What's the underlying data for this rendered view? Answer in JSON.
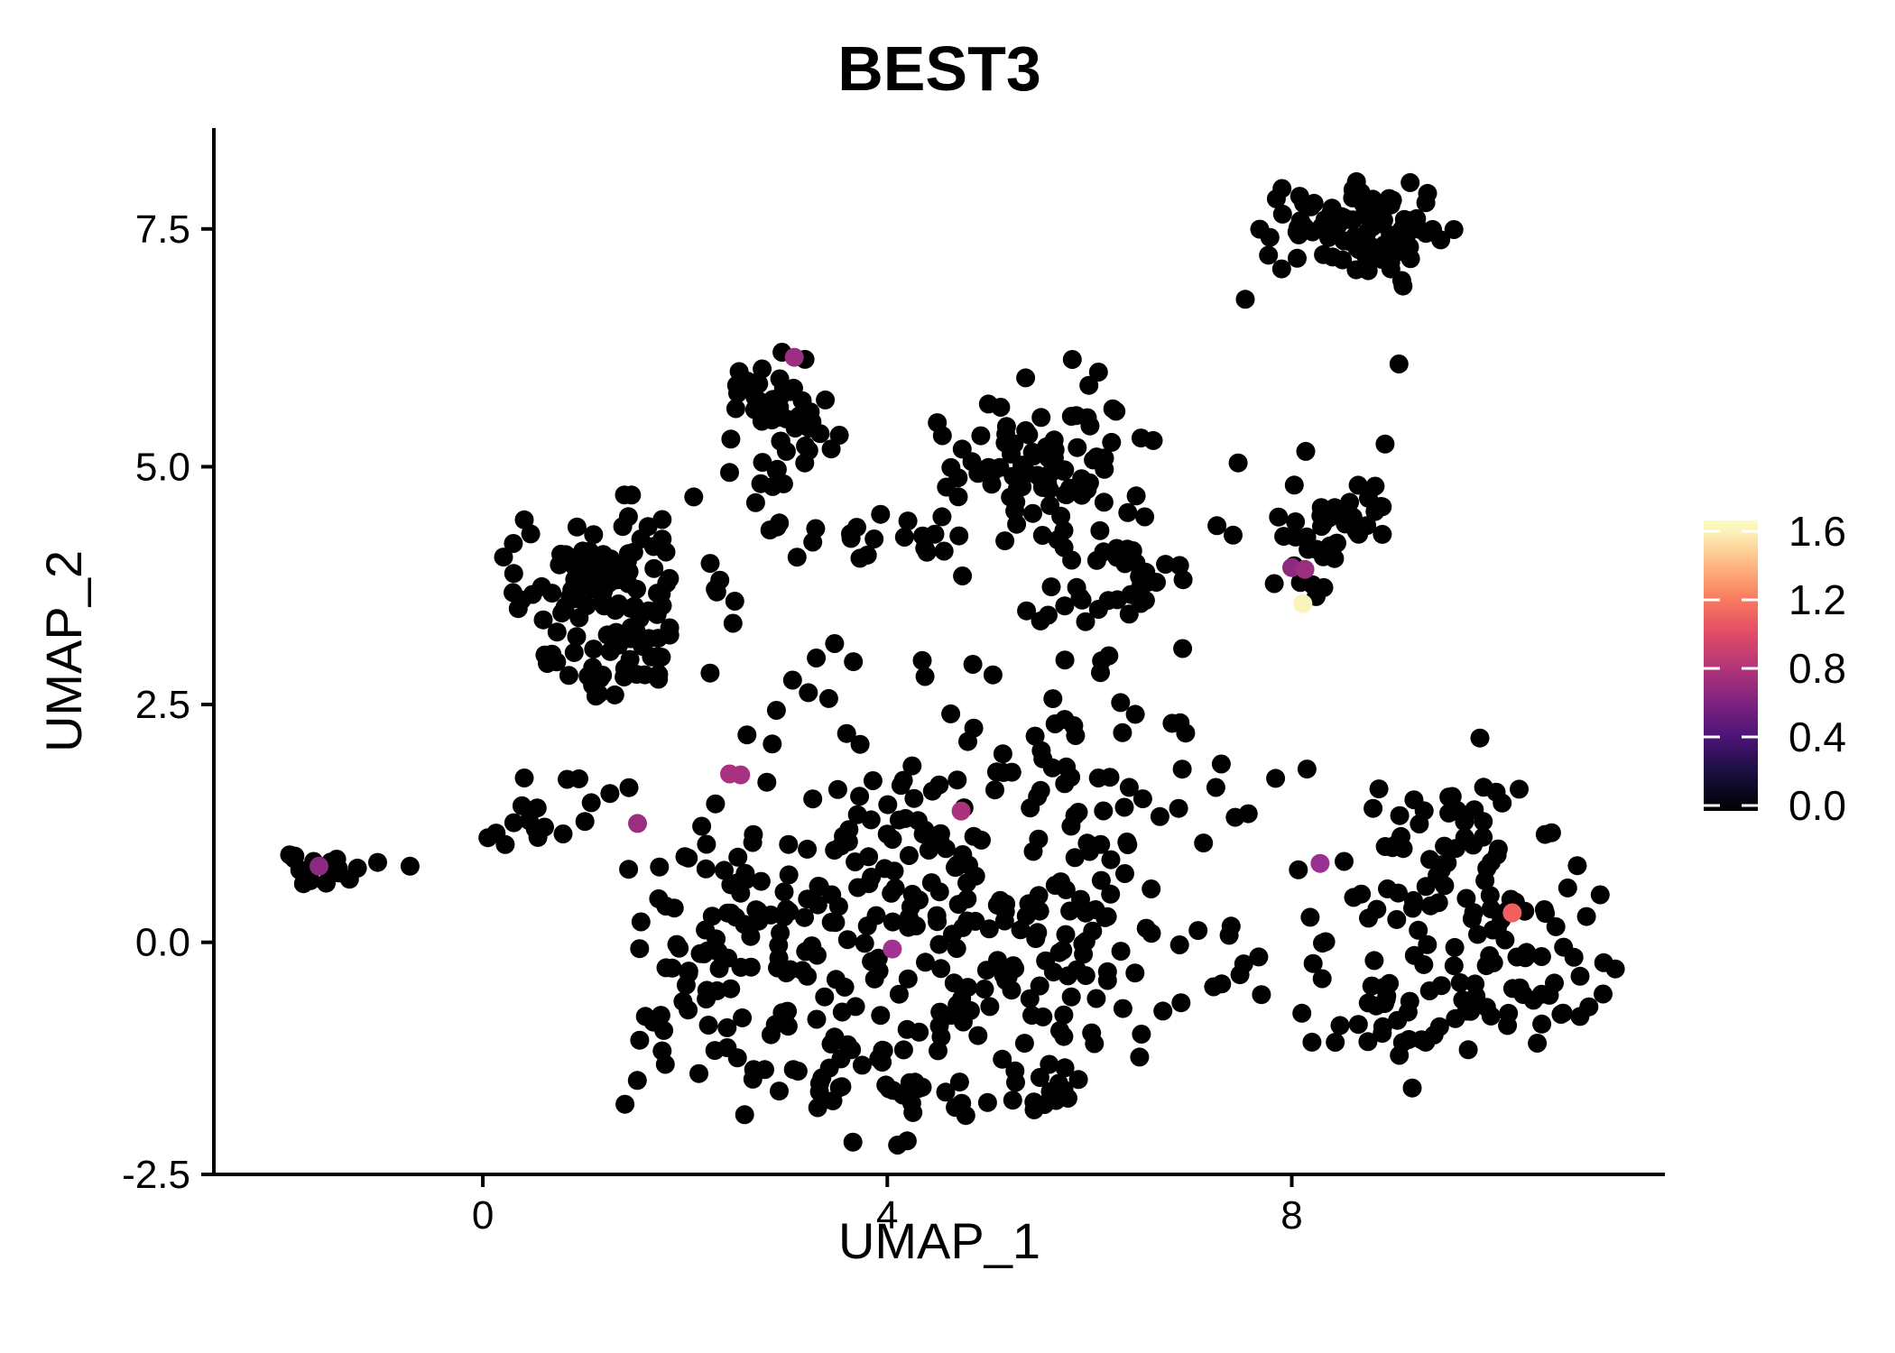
{
  "chart_data": {
    "type": "scatter",
    "title": "BEST3",
    "xlabel": "UMAP_1",
    "ylabel": "UMAP_2",
    "x_range": [
      -2.66,
      11.69
    ],
    "y_range": [
      -2.44,
      8.56
    ],
    "x_ticks": [
      0,
      4,
      8
    ],
    "y_ticks": [
      7.5,
      5.0,
      2.5,
      0.0,
      -2.5
    ],
    "x_tick_labels": [
      "0",
      "4",
      "8"
    ],
    "y_tick_labels": [
      "7.5",
      "5.0",
      "2.5",
      "0.0",
      "-2.5"
    ],
    "grid": false,
    "background_color": "#ffffff",
    "axis_color": "#000000",
    "point_color_default": "#000000",
    "point_radius": 10.5,
    "seed": 7,
    "legend": {
      "position": "right",
      "tick_labels": [
        "1.6",
        "1.2",
        "0.8",
        "0.4",
        "0.0"
      ],
      "tick_values": [
        1.6,
        1.2,
        0.8,
        0.4,
        0.0
      ],
      "tick_color": "#ffffff",
      "gradient_stops": [
        {
          "f": 0.0,
          "c": "#fcfdbf"
        },
        {
          "f": 0.037,
          "c": "#fbf3b9"
        },
        {
          "f": 0.155,
          "c": "#feb680"
        },
        {
          "f": 0.273,
          "c": "#f9795f"
        },
        {
          "f": 0.391,
          "c": "#e04b67"
        },
        {
          "f": 0.509,
          "c": "#b23479"
        },
        {
          "f": 0.627,
          "c": "#7e2380"
        },
        {
          "f": 0.745,
          "c": "#4c1377"
        },
        {
          "f": 0.863,
          "c": "#1c0f42"
        },
        {
          "f": 0.981,
          "c": "#02020b"
        },
        {
          "f": 1.0,
          "c": "#000004"
        }
      ]
    },
    "highlight_points": [
      {
        "x": 3.08,
        "y": 6.15,
        "value": 0.8,
        "color": "#9c2e7f"
      },
      {
        "x": 8.0,
        "y": 3.94,
        "value": 0.7,
        "color": "#8c2981"
      },
      {
        "x": 8.13,
        "y": 3.92,
        "value": 0.8,
        "color": "#9c2e7f"
      },
      {
        "x": 8.11,
        "y": 3.56,
        "value": 1.6,
        "color": "#faf3bc"
      },
      {
        "x": -1.62,
        "y": 0.8,
        "value": 0.7,
        "color": "#8c2981"
      },
      {
        "x": 2.44,
        "y": 1.77,
        "value": 0.9,
        "color": "#a93280"
      },
      {
        "x": 2.55,
        "y": 1.76,
        "value": 0.9,
        "color": "#a93280"
      },
      {
        "x": 1.53,
        "y": 1.25,
        "value": 0.8,
        "color": "#9c2e7f"
      },
      {
        "x": 4.73,
        "y": 1.38,
        "value": 0.9,
        "color": "#ab337d"
      },
      {
        "x": 8.28,
        "y": 0.83,
        "value": 0.8,
        "color": "#9c3091"
      },
      {
        "x": 10.18,
        "y": 0.31,
        "value": 1.2,
        "color": "#f1605d"
      },
      {
        "x": 4.05,
        "y": -0.07,
        "value": 0.85,
        "color": "#a33391"
      }
    ],
    "background_clusters": [
      {
        "name": "far-left",
        "x": -1.65,
        "y": 0.75,
        "sx": 0.17,
        "sy": 0.11,
        "n": 15
      },
      {
        "name": "top-mid-main",
        "x": 2.95,
        "y": 5.65,
        "sx": 0.29,
        "sy": 0.3,
        "n": 48
      },
      {
        "name": "top-mid-tail",
        "x": 2.78,
        "y": 4.88,
        "sx": 0.33,
        "sy": 0.16,
        "n": 10
      },
      {
        "name": "mid-left-main",
        "x": 1.25,
        "y": 3.85,
        "sx": 0.45,
        "sy": 0.42,
        "n": 85
      },
      {
        "name": "mid-left-lower",
        "x": 1.15,
        "y": 2.95,
        "sx": 0.38,
        "sy": 0.26,
        "n": 32
      },
      {
        "name": "mid-left-right",
        "x": 2.0,
        "y": 3.4,
        "sx": 0.25,
        "sy": 0.42,
        "n": 16
      },
      {
        "name": "upper-band",
        "x": 3.8,
        "y": 4.28,
        "sx": 0.62,
        "sy": 0.13,
        "n": 20
      },
      {
        "name": "upper-right-main",
        "x": 5.55,
        "y": 5.1,
        "sx": 0.48,
        "sy": 0.42,
        "n": 80
      },
      {
        "name": "upper-right-lower",
        "x": 6.2,
        "y": 4.0,
        "sx": 0.3,
        "sy": 0.42,
        "n": 22
      },
      {
        "name": "upper-right-left",
        "x": 5.0,
        "y": 4.35,
        "sx": 0.28,
        "sy": 0.3,
        "n": 8
      },
      {
        "name": "right-mid-main",
        "x": 8.55,
        "y": 4.55,
        "sx": 0.34,
        "sy": 0.3,
        "n": 33
      },
      {
        "name": "right-mid-tail",
        "x": 8.1,
        "y": 3.85,
        "sx": 0.2,
        "sy": 0.24,
        "n": 9
      },
      {
        "name": "top-right",
        "x": 8.6,
        "y": 7.5,
        "sx": 0.42,
        "sy": 0.26,
        "n": 88
      },
      {
        "name": "bottom-right-upper",
        "x": 9.6,
        "y": 1.1,
        "sx": 0.55,
        "sy": 0.48,
        "n": 55
      },
      {
        "name": "bottom-right-main",
        "x": 9.4,
        "y": -0.4,
        "sx": 0.6,
        "sy": 0.45,
        "n": 70
      },
      {
        "name": "bottom-right-right",
        "x": 10.4,
        "y": 0.1,
        "sx": 0.4,
        "sy": 0.55,
        "n": 24
      },
      {
        "name": "cloud-upper",
        "x": 4.7,
        "y": 0.85,
        "sx": 0.85,
        "sy": 0.5,
        "n": 62
      },
      {
        "name": "cloud-left",
        "x": 3.3,
        "y": 0.1,
        "sx": 0.75,
        "sy": 0.65,
        "n": 70
      },
      {
        "name": "cloud-right",
        "x": 5.3,
        "y": -0.55,
        "sx": 0.85,
        "sy": 0.55,
        "n": 70
      },
      {
        "name": "cloud-bottom-arc",
        "x": 4.3,
        "y": -1.45,
        "sx": 0.95,
        "sy": 0.3,
        "n": 52
      },
      {
        "name": "cloud-left-lobe",
        "x": 2.35,
        "y": 0.5,
        "sx": 0.5,
        "sy": 0.6,
        "n": 44
      },
      {
        "name": "cloud-right-lobe",
        "x": 6.3,
        "y": 0.5,
        "sx": 0.45,
        "sy": 0.75,
        "n": 38
      },
      {
        "name": "cloud-bottom-left",
        "x": 2.1,
        "y": -0.9,
        "sx": 0.45,
        "sy": 0.4,
        "n": 26
      },
      {
        "name": "cloud-mid-band",
        "x": 5.9,
        "y": 2.8,
        "sx": 0.5,
        "sy": 0.45,
        "n": 20
      },
      {
        "name": "cloud-col-right",
        "x": 6.45,
        "y": 3.8,
        "sx": 0.3,
        "sy": 0.4,
        "n": 13
      },
      {
        "name": "cloud-sparse-mid",
        "x": 3.6,
        "y": 2.6,
        "sx": 0.6,
        "sy": 0.35,
        "n": 12
      },
      {
        "name": "cloud-top-band",
        "x": 5.0,
        "y": 1.9,
        "sx": 0.9,
        "sy": 0.3,
        "n": 28
      },
      {
        "name": "left-band",
        "x": 0.35,
        "y": 1.2,
        "sx": 0.2,
        "sy": 0.1,
        "n": 9
      },
      {
        "name": "left-band-2",
        "x": 0.95,
        "y": 1.5,
        "sx": 0.3,
        "sy": 0.2,
        "n": 8
      },
      {
        "name": "gap-right",
        "x": 7.6,
        "y": 1.7,
        "sx": 0.35,
        "sy": 0.45,
        "n": 7
      },
      {
        "name": "gap-bottom",
        "x": 7.45,
        "y": -0.1,
        "sx": 0.3,
        "sy": 0.5,
        "n": 5
      }
    ],
    "extra_points": [
      [
        -1.24,
        0.78
      ],
      [
        -1.04,
        0.84
      ],
      [
        -0.72,
        0.8
      ],
      [
        7.54,
        6.76
      ],
      [
        9.1,
        6.9
      ],
      [
        8.98,
        7.08
      ],
      [
        9.06,
        6.08
      ],
      [
        11.2,
        -0.28
      ],
      [
        11.05,
        0.5
      ],
      [
        10.85,
        -0.78
      ],
      [
        8.2,
        -1.05
      ],
      [
        7.26,
        4.38
      ],
      [
        7.42,
        4.28
      ],
      [
        7.47,
        5.04
      ],
      [
        7.4,
        0.17
      ],
      [
        7.7,
        -0.55
      ],
      [
        6.95,
        2.2
      ],
      [
        0.05,
        1.1
      ]
    ]
  }
}
